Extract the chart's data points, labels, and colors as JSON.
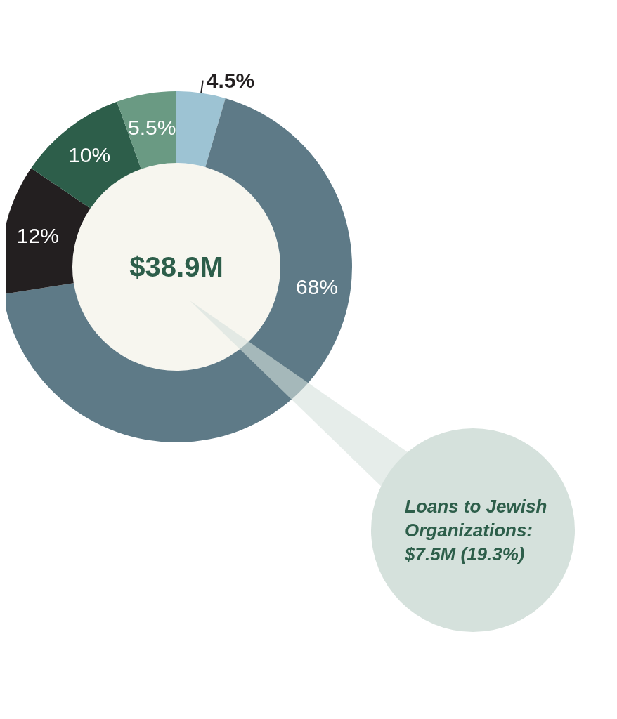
{
  "chart_data": {
    "type": "donut",
    "title": "$38.9M",
    "categories": [
      null,
      null,
      null,
      null,
      null
    ],
    "values": [
      4.5,
      68,
      12,
      10,
      5.5
    ],
    "value_labels": [
      "4.5%",
      "68%",
      "12%",
      "10%",
      "5.5%"
    ],
    "colors": [
      "#9dc3d3",
      "#5e7a87",
      "#231f20",
      "#2d5e4a",
      "#6a9a83"
    ],
    "annotations": [
      "Loans to Jewish Organizations: $7.5M (19.3%)"
    ]
  }
}
